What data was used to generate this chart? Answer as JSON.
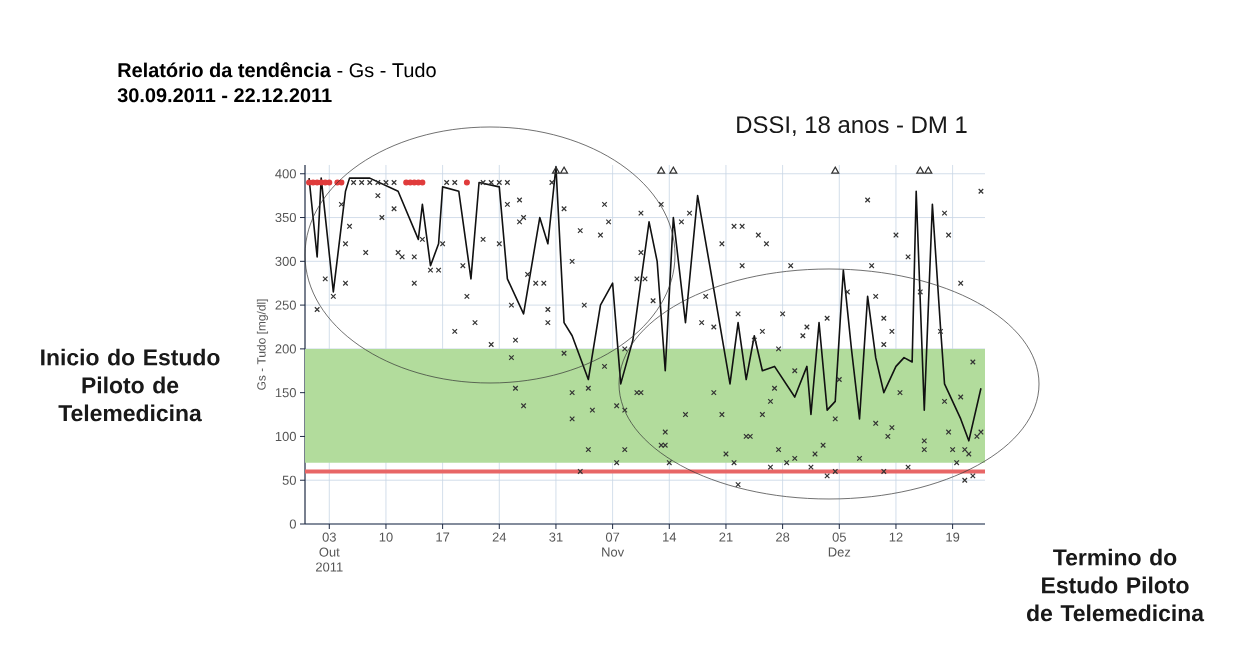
{
  "chart_data": {
    "type": "scatter",
    "title": "**Relatório da tendência** - Gs - Tudo",
    "subtitle": "30.09.2011 - 22.12.2011",
    "ylabel": "Gs - Tudo [mg/dl]",
    "annotations": [
      "DSSI, 18 anos - DM 1",
      "Inicio do Estudo Piloto de Telemedicina",
      "Termino do Estudo Piloto de Telemedicina"
    ],
    "xlim": [
      "2011-09-30",
      "2011-12-23"
    ],
    "xticks": [
      {
        "value": "2011-10-03",
        "label": "03 Out 2011"
      },
      {
        "value": "2011-10-10",
        "label": "10"
      },
      {
        "value": "2011-10-17",
        "label": "17"
      },
      {
        "value": "2011-10-24",
        "label": "24"
      },
      {
        "value": "2011-10-31",
        "label": "31"
      },
      {
        "value": "2011-11-07",
        "label": "07 Nov"
      },
      {
        "value": "2011-11-14",
        "label": "14"
      },
      {
        "value": "2011-11-21",
        "label": "21"
      },
      {
        "value": "2011-11-28",
        "label": "28"
      },
      {
        "value": "2011-12-05",
        "label": "05 Dez"
      },
      {
        "value": "2011-12-12",
        "label": "12"
      },
      {
        "value": "2011-12-19",
        "label": "19"
      }
    ],
    "ylim": [
      0,
      410
    ],
    "yticks": [
      0,
      50,
      100,
      150,
      200,
      250,
      300,
      350,
      400
    ],
    "grid": true,
    "bands": [
      {
        "axis": "y",
        "from": 70,
        "to": 200,
        "color": "#b2dc9c"
      }
    ],
    "ref_lines": [
      {
        "axis": "y",
        "value": 60,
        "color": "#e86666"
      }
    ],
    "series": [
      {
        "type": "line",
        "color": "#111111",
        "marker": "none",
        "line_style": "solid",
        "x": [
          "2011-09-30T12:00",
          "2011-10-01T12:00",
          "2011-10-02",
          "2011-10-03T12:00",
          "2011-10-05",
          "2011-10-05T12:00",
          "2011-10-08",
          "2011-10-11T12:00",
          "2011-10-14",
          "2011-10-14T12:00",
          "2011-10-15T12:00",
          "2011-10-16T12:00",
          "2011-10-17",
          "2011-10-19",
          "2011-10-20T12:00",
          "2011-10-21T12:00",
          "2011-10-24",
          "2011-10-25",
          "2011-10-27",
          "2011-10-29",
          "2011-10-30",
          "2011-10-31",
          "2011-11-01",
          "2011-11-02",
          "2011-11-04",
          "2011-11-05T12:00",
          "2011-11-07",
          "2011-11-08",
          "2011-11-09T12:00",
          "2011-11-11T12:00",
          "2011-11-12T12:00",
          "2011-11-13T12:00",
          "2011-11-14T12:00",
          "2011-11-16",
          "2011-11-17T12:00",
          "2011-11-19",
          "2011-11-21T12:00",
          "2011-11-22T12:00",
          "2011-11-23T12:00",
          "2011-11-24T12:00",
          "2011-11-25T12:00",
          "2011-11-27",
          "2011-11-29T12:00",
          "2011-12-01",
          "2011-12-01T12:00",
          "2011-12-02T12:00",
          "2011-12-03T12:00",
          "2011-12-04T12:00",
          "2011-12-05T12:00",
          "2011-12-06T12:00",
          "2011-12-07T12:00",
          "2011-12-08T12:00",
          "2011-12-09T12:00",
          "2011-12-10T12:00",
          "2011-12-12",
          "2011-12-13",
          "2011-12-14",
          "2011-12-14T12:00",
          "2011-12-15T12:00",
          "2011-12-16T12:00",
          "2011-12-17T12:00",
          "2011-12-18",
          "2011-12-20",
          "2011-12-21",
          "2011-12-22T12:00"
        ],
        "values": [
          395,
          305,
          395,
          265,
          380,
          395,
          395,
          380,
          325,
          365,
          295,
          320,
          385,
          380,
          280,
          390,
          385,
          280,
          240,
          350,
          320,
          408,
          230,
          215,
          165,
          250,
          275,
          160,
          210,
          345,
          300,
          175,
          350,
          230,
          375,
          295,
          160,
          230,
          165,
          215,
          175,
          180,
          145,
          180,
          125,
          230,
          130,
          140,
          290,
          200,
          120,
          260,
          190,
          150,
          180,
          190,
          185,
          380,
          130,
          365,
          225,
          160,
          120,
          95,
          155
        ]
      },
      {
        "color": "#333333",
        "marker": "cross",
        "x": [
          "2011-10-01T12:00",
          "2011-10-02T12:00",
          "2011-10-03T12:00",
          "2011-10-04T12:00",
          "2011-10-05",
          "2011-10-05T12:00",
          "2011-10-05",
          "2011-10-07T12:00",
          "2011-10-09",
          "2011-10-09T12:00",
          "2011-10-11",
          "2011-10-11T12:00",
          "2011-10-12",
          "2011-10-13T12:00",
          "2011-10-13T12:00",
          "2011-10-14T12:00",
          "2011-10-15T12:00",
          "2011-10-16T12:00",
          "2011-10-17",
          "2011-10-18T12:00",
          "2011-10-19T12:00",
          "2011-10-20",
          "2011-10-21",
          "2011-10-22",
          "2011-10-23",
          "2011-10-24",
          "2011-10-25",
          "2011-10-25T12:00",
          "2011-10-26",
          "2011-10-25T12:00",
          "2011-10-26T12:00",
          "2011-10-26T12:00",
          "2011-10-26",
          "2011-10-27",
          "2011-10-27T12:00",
          "2011-10-28T12:00",
          "2011-10-29T12:00",
          "2011-10-30",
          "2011-10-30",
          "2011-11-01",
          "2011-11-02",
          "2011-11-03",
          "2011-11-03T12:00",
          "2011-11-01",
          "2011-11-02",
          "2011-11-04",
          "2011-11-04T12:00",
          "2011-11-05T12:00",
          "2011-11-06",
          "2011-11-06T12:00",
          "2011-11-06",
          "2011-11-07T12:00",
          "2011-11-08T12:00",
          "2011-11-10",
          "2011-11-10",
          "2011-11-10T12:00",
          "2011-11-13",
          "2011-10-27",
          "2011-11-02",
          "2011-11-04",
          "2011-11-03",
          "2011-11-07T12:00",
          "2011-11-08T12:00",
          "2011-11-08T12:00",
          "2011-11-13T12:00",
          "2011-11-13T12:00",
          "2011-11-15T12:00",
          "2011-11-16T12:00",
          "2011-11-10T12:00",
          "2011-11-11",
          "2011-11-12",
          "2011-11-18T12:00",
          "2011-11-18",
          "2011-11-19T12:00",
          "2011-11-20T12:00",
          "2011-11-22",
          "2011-11-23",
          "2011-11-23",
          "2011-11-25",
          "2011-11-26",
          "2011-11-22T12:00",
          "2011-11-24T12:00",
          "2011-11-25T12:00",
          "2011-11-28",
          "2011-11-27T12:00",
          "2011-11-29",
          "2011-11-30T12:00",
          "2011-12-01",
          "2011-12-03T12:00",
          "2011-12-06",
          "2011-12-08T12:00",
          "2011-12-09",
          "2011-12-09T12:00",
          "2011-12-10T12:00",
          "2011-12-11T12:00",
          "2011-12-10T12:00",
          "2011-12-12",
          "2011-12-13T12:00",
          "2011-12-15",
          "2011-12-17T12:00",
          "2011-12-18",
          "2011-12-18T12:00",
          "2011-12-20",
          "2011-12-22T12:00",
          "2011-12-21T12:00",
          "2011-11-10T12:00",
          "2011-11-16",
          "2011-11-19T12:00",
          "2011-11-20T12:00",
          "2011-11-27",
          "2011-11-26T12:00",
          "2011-11-25T12:00",
          "2011-11-29T12:00",
          "2011-12-05",
          "2011-12-12T12:00",
          "2011-12-18",
          "2011-12-20",
          "2011-11-13",
          "2011-11-14",
          "2011-11-21",
          "2011-11-22",
          "2011-11-22T12:00",
          "2011-11-23T12:00",
          "2011-11-24",
          "2011-11-26T12:00",
          "2011-11-27T12:00",
          "2011-11-28T12:00",
          "2011-11-29T12:00",
          "2011-12-01T12:00",
          "2011-12-02",
          "2011-12-03",
          "2011-12-03T12:00",
          "2011-12-04T12:00",
          "2011-12-04T12:00",
          "2011-12-07T12:00",
          "2011-12-09T12:00",
          "2011-12-10T12:00",
          "2011-12-11",
          "2011-12-11T12:00",
          "2011-12-13T12:00",
          "2011-12-15T12:00",
          "2011-12-15T12:00",
          "2011-12-18T12:00",
          "2011-12-19",
          "2011-12-19T12:00",
          "2011-12-20T12:00",
          "2011-12-21",
          "2011-12-20T12:00",
          "2011-12-21T12:00",
          "2011-12-22T12:00",
          "2011-12-22",
          "2011-10-06",
          "2011-10-07",
          "2011-10-08",
          "2011-10-09",
          "2011-10-10",
          "2011-10-11",
          "2011-10-17T12:00",
          "2011-10-18T12:00",
          "2011-10-22",
          "2011-10-23",
          "2011-10-24",
          "2011-10-25",
          "2011-10-30T12:00"
        ],
        "values": [
          245,
          280,
          260,
          365,
          320,
          340,
          275,
          310,
          375,
          350,
          360,
          310,
          305,
          305,
          275,
          325,
          290,
          290,
          320,
          220,
          295,
          260,
          230,
          325,
          205,
          320,
          365,
          250,
          210,
          190,
          370,
          345,
          155,
          350,
          285,
          275,
          275,
          245,
          230,
          360,
          300,
          335,
          250,
          195,
          150,
          155,
          130,
          330,
          365,
          345,
          180,
          135,
          200,
          150,
          280,
          355,
          365,
          135,
          120,
          85,
          60,
          70,
          85,
          130,
          90,
          105,
          345,
          355,
          310,
          280,
          255,
          260,
          230,
          225,
          320,
          340,
          340,
          295,
          330,
          320,
          240,
          210,
          220,
          240,
          200,
          295,
          215,
          225,
          235,
          265,
          370,
          295,
          260,
          235,
          220,
          205,
          330,
          305,
          265,
          220,
          355,
          330,
          275,
          380,
          185,
          150,
          125,
          150,
          125,
          155,
          140,
          125,
          175,
          165,
          150,
          140,
          145,
          90,
          70,
          80,
          70,
          45,
          100,
          100,
          65,
          85,
          70,
          75,
          65,
          80,
          90,
          55,
          60,
          120,
          75,
          115,
          60,
          100,
          110,
          65,
          95,
          85,
          105,
          85,
          70,
          85,
          80,
          50,
          55,
          105,
          100,
          390,
          390,
          390,
          390,
          390,
          390,
          390,
          390,
          390,
          390,
          390,
          390,
          390
        ]
      },
      {
        "color": "#e03c3c",
        "marker": "circle",
        "x": [
          "2011-09-30T12:00",
          "2011-10-01",
          "2011-10-01T12:00",
          "2011-10-02",
          "2011-10-02T12:00",
          "2011-10-03",
          "2011-10-04",
          "2011-10-04T12:00",
          "2011-10-12T12:00",
          "2011-10-13",
          "2011-10-13T12:00",
          "2011-10-14",
          "2011-10-14T12:00",
          "2011-10-20"
        ],
        "values": [
          390,
          390,
          390,
          390,
          390,
          390,
          390,
          390,
          390,
          390,
          390,
          390,
          390,
          390
        ]
      },
      {
        "color": "#333333",
        "marker": "triangle",
        "x": [
          "2011-10-31",
          "2011-11-01",
          "2011-11-13",
          "2011-11-14T12:00",
          "2011-12-04T12:00",
          "2011-12-15",
          "2011-12-16"
        ],
        "values": [
          403,
          403,
          403,
          403,
          403,
          403,
          403
        ]
      }
    ]
  }
}
